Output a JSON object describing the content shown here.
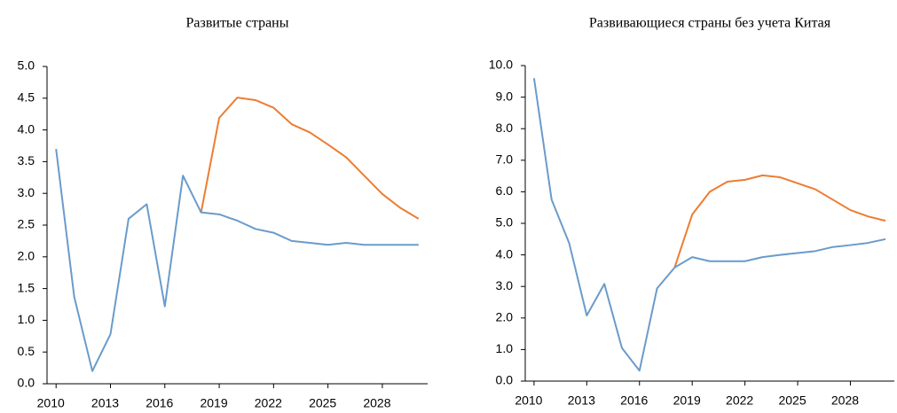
{
  "chart_data": [
    {
      "type": "line",
      "title": "Развитые страны",
      "x": [
        2010,
        2011,
        2012,
        2013,
        2014,
        2015,
        2016,
        2017,
        2018,
        2019,
        2020,
        2021,
        2022,
        2023,
        2024,
        2025,
        2026,
        2027,
        2028,
        2029,
        2030
      ],
      "series": [
        {
          "color": "#ed7d31",
          "values": [
            null,
            null,
            null,
            null,
            null,
            null,
            null,
            null,
            2.7,
            4.19,
            4.51,
            4.47,
            4.35,
            4.09,
            3.96,
            3.77,
            3.57,
            3.28,
            2.99,
            2.77,
            2.6
          ]
        },
        {
          "color": "#6a9bcb",
          "values": [
            3.7,
            1.37,
            0.2,
            0.78,
            2.6,
            2.83,
            1.22,
            3.28,
            2.7,
            2.67,
            2.57,
            2.44,
            2.38,
            2.25,
            2.22,
            2.19,
            2.22,
            2.19,
            2.19,
            2.19,
            2.19
          ]
        }
      ],
      "xlim": [
        2009.5,
        2030.5
      ],
      "xticks": [
        2010,
        2013,
        2016,
        2019,
        2022,
        2025,
        2028
      ],
      "ylim": [
        0,
        5
      ],
      "yticks": [
        {
          "value": 0,
          "label": "0.0"
        },
        {
          "value": 0.5,
          "label": "0.5"
        },
        {
          "value": 1,
          "label": "1.0"
        },
        {
          "value": 1.5,
          "label": "1.5"
        },
        {
          "value": 2,
          "label": "2.0"
        },
        {
          "value": 2.5,
          "label": "2.5"
        },
        {
          "value": 3,
          "label": "3.0"
        },
        {
          "value": 3.5,
          "label": "3.5"
        },
        {
          "value": 4,
          "label": "4.0"
        },
        {
          "value": 4.5,
          "label": "4.5"
        },
        {
          "value": 5,
          "label": "5.0"
        }
      ]
    },
    {
      "type": "line",
      "title": "Развивающиеся страны без учета Китая",
      "x": [
        2010,
        2011,
        2012,
        2013,
        2014,
        2015,
        2016,
        2017,
        2018,
        2019,
        2020,
        2021,
        2022,
        2023,
        2024,
        2025,
        2026,
        2027,
        2028,
        2029,
        2030
      ],
      "series": [
        {
          "color": "#ed7d31",
          "values": [
            null,
            null,
            null,
            null,
            null,
            null,
            null,
            null,
            3.6,
            5.28,
            6.0,
            6.32,
            6.38,
            6.52,
            6.46,
            6.27,
            6.08,
            5.75,
            5.42,
            5.22,
            5.08
          ]
        },
        {
          "color": "#6a9bcb",
          "values": [
            9.6,
            5.75,
            4.37,
            2.08,
            3.08,
            1.05,
            0.33,
            2.94,
            3.6,
            3.93,
            3.8,
            3.8,
            3.8,
            3.93,
            4.0,
            4.06,
            4.12,
            4.25,
            4.31,
            4.38,
            4.5
          ]
        }
      ],
      "xlim": [
        2009.5,
        2030.5
      ],
      "xticks": [
        2010,
        2013,
        2016,
        2019,
        2022,
        2025,
        2028
      ],
      "ylim": [
        0,
        10
      ],
      "yticks": [
        {
          "value": 0,
          "label": "0.0"
        },
        {
          "value": 1,
          "label": "1.0"
        },
        {
          "value": 2,
          "label": "2.0"
        },
        {
          "value": 3,
          "label": "3.0"
        },
        {
          "value": 4,
          "label": "4.0"
        },
        {
          "value": 5,
          "label": "5.0"
        },
        {
          "value": 6,
          "label": "6.0"
        },
        {
          "value": 7,
          "label": "7.0"
        },
        {
          "value": 8,
          "label": "8.0"
        },
        {
          "value": 9,
          "label": "9.0"
        },
        {
          "value": 10,
          "label": "10.0"
        }
      ]
    }
  ]
}
